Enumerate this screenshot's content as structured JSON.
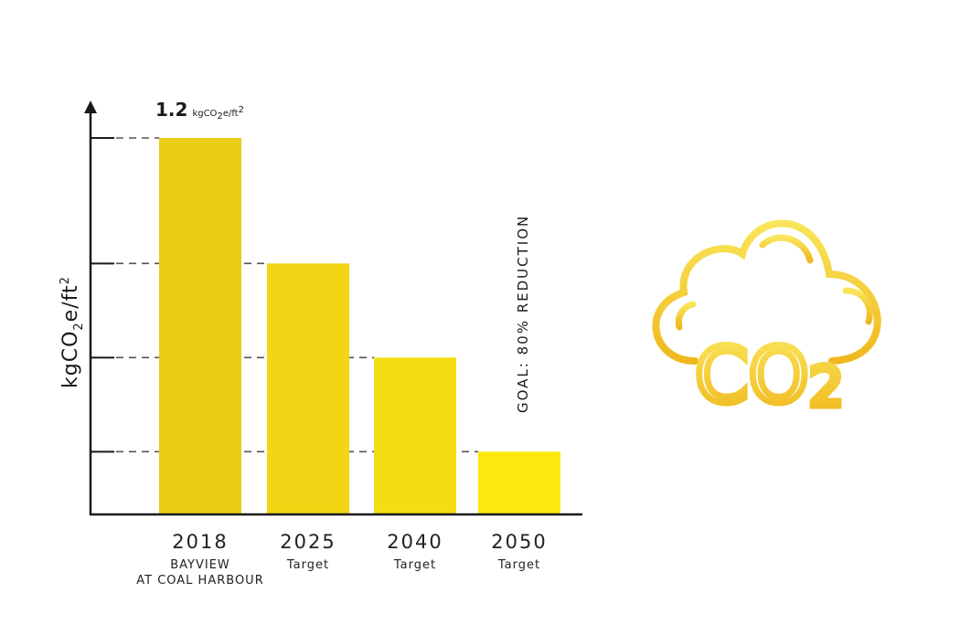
{
  "chart_data": {
    "type": "bar",
    "ylabel_main": "kgCO",
    "ylabel_sub1": "2",
    "ylabel_rest": "e/ft",
    "ylabel_sup": "2",
    "categories": [
      "2018",
      "2025",
      "2040",
      "2050"
    ],
    "category_sublabels": [
      [
        "BAYVIEW",
        "AT COAL HARBOUR"
      ],
      [
        "Target"
      ],
      [
        "Target"
      ],
      [
        "Target"
      ]
    ],
    "values": [
      1.2,
      0.8,
      0.5,
      0.2
    ],
    "ylim": [
      0,
      1.38
    ],
    "annotation_value": "1.2",
    "annotation_unit_main": "kgCO",
    "annotation_unit_sub": "2",
    "annotation_unit_rest": "e/ft",
    "annotation_unit_sup": "2",
    "goal_text": "GOAL: 80% REDUCTION",
    "bar_colors": [
      "#e9cc14",
      "#f0d614",
      "#f4dd12",
      "#fbe80c"
    ],
    "grid": "dashed reference lines at bar tops"
  },
  "icon": {
    "name": "co2-cloud-icon",
    "text_main": "CO",
    "text_sub": "2",
    "color_light": "#f7dc3a",
    "color_dark": "#f0b820"
  }
}
